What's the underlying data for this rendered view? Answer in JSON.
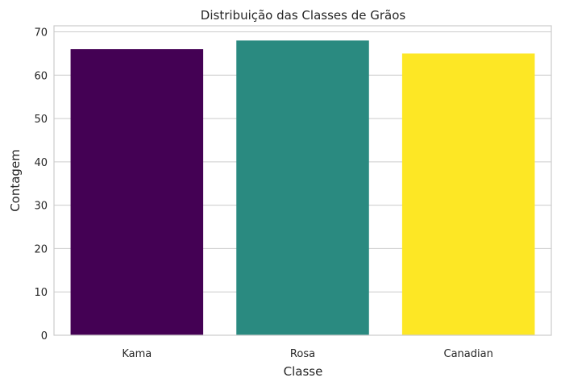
{
  "chart_data": {
    "type": "bar",
    "title": "Distribuição das Classes de Grãos",
    "xlabel": "Classe",
    "ylabel": "Contagem",
    "categories": [
      "Kama",
      "Rosa",
      "Canadian"
    ],
    "values": [
      66,
      68,
      65
    ],
    "colors": [
      "#440154",
      "#2a8a80",
      "#fde725"
    ],
    "ylim": [
      0,
      71.4
    ],
    "yticks": [
      0,
      10,
      20,
      30,
      40,
      50,
      60,
      70
    ],
    "grid": "horizontal",
    "legend": "none"
  }
}
